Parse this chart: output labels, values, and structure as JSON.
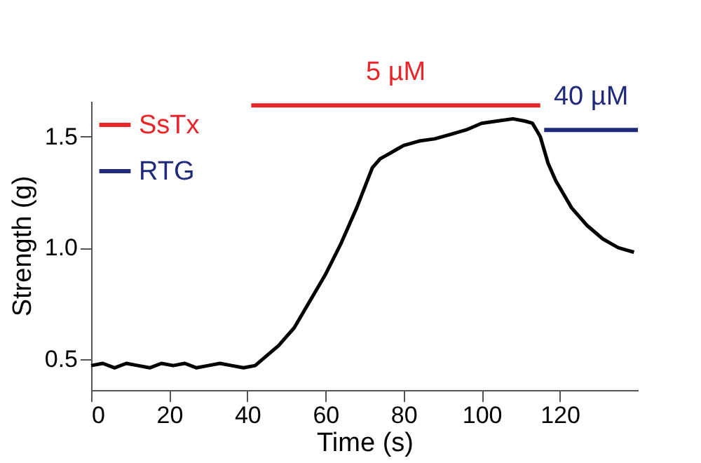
{
  "chart_data": {
    "type": "line",
    "xlabel": "Time (s)",
    "ylabel": "Strength (g)",
    "xlim": [
      0,
      140
    ],
    "xticks": [
      0,
      20,
      40,
      60,
      80,
      100,
      120
    ],
    "ylim": [
      0.36,
      1.66
    ],
    "yticks": [
      0.5,
      {
        "value": 1,
        "label": "1.0"
      },
      1.5
    ],
    "series": [
      {
        "color": "#000000",
        "x": [
          0,
          3,
          6,
          9,
          12,
          15,
          18,
          21,
          24,
          27,
          30,
          33,
          36,
          39,
          42,
          44,
          46,
          48,
          50,
          52,
          54,
          56,
          58,
          60,
          62,
          64,
          66,
          68,
          70,
          72,
          74,
          76,
          78,
          80,
          84,
          88,
          92,
          96,
          100,
          104,
          108,
          111,
          113,
          115,
          117,
          119,
          121,
          123,
          125,
          127,
          129,
          131,
          133,
          135,
          137,
          139
        ],
        "values": [
          0.47,
          0.48,
          0.46,
          0.48,
          0.47,
          0.46,
          0.48,
          0.47,
          0.48,
          0.46,
          0.47,
          0.48,
          0.47,
          0.46,
          0.47,
          0.5,
          0.53,
          0.56,
          0.6,
          0.64,
          0.7,
          0.76,
          0.82,
          0.88,
          0.95,
          1.02,
          1.1,
          1.18,
          1.27,
          1.36,
          1.4,
          1.42,
          1.44,
          1.46,
          1.48,
          1.49,
          1.51,
          1.53,
          1.56,
          1.57,
          1.58,
          1.57,
          1.56,
          1.5,
          1.38,
          1.3,
          1.24,
          1.18,
          1.14,
          1.1,
          1.07,
          1.04,
          1.02,
          1.0,
          0.99,
          0.98
        ]
      },
      {
        "name": "SsTx",
        "color": "#e8262a",
        "x": [
          41,
          115
        ],
        "values": [
          1.64,
          1.64
        ]
      },
      {
        "name": "RTG",
        "color": "#1f2a7a",
        "x": [
          116,
          140
        ],
        "values": [
          1.53,
          1.53
        ]
      }
    ],
    "annotations": [
      {
        "text": "5 µM",
        "x": 78,
        "y": 1.64
      },
      {
        "text": "40 µM",
        "x": 128,
        "y": 1.53
      }
    ],
    "legend": "top left",
    "marker": "none",
    "line_style": "solid",
    "grid": false
  }
}
